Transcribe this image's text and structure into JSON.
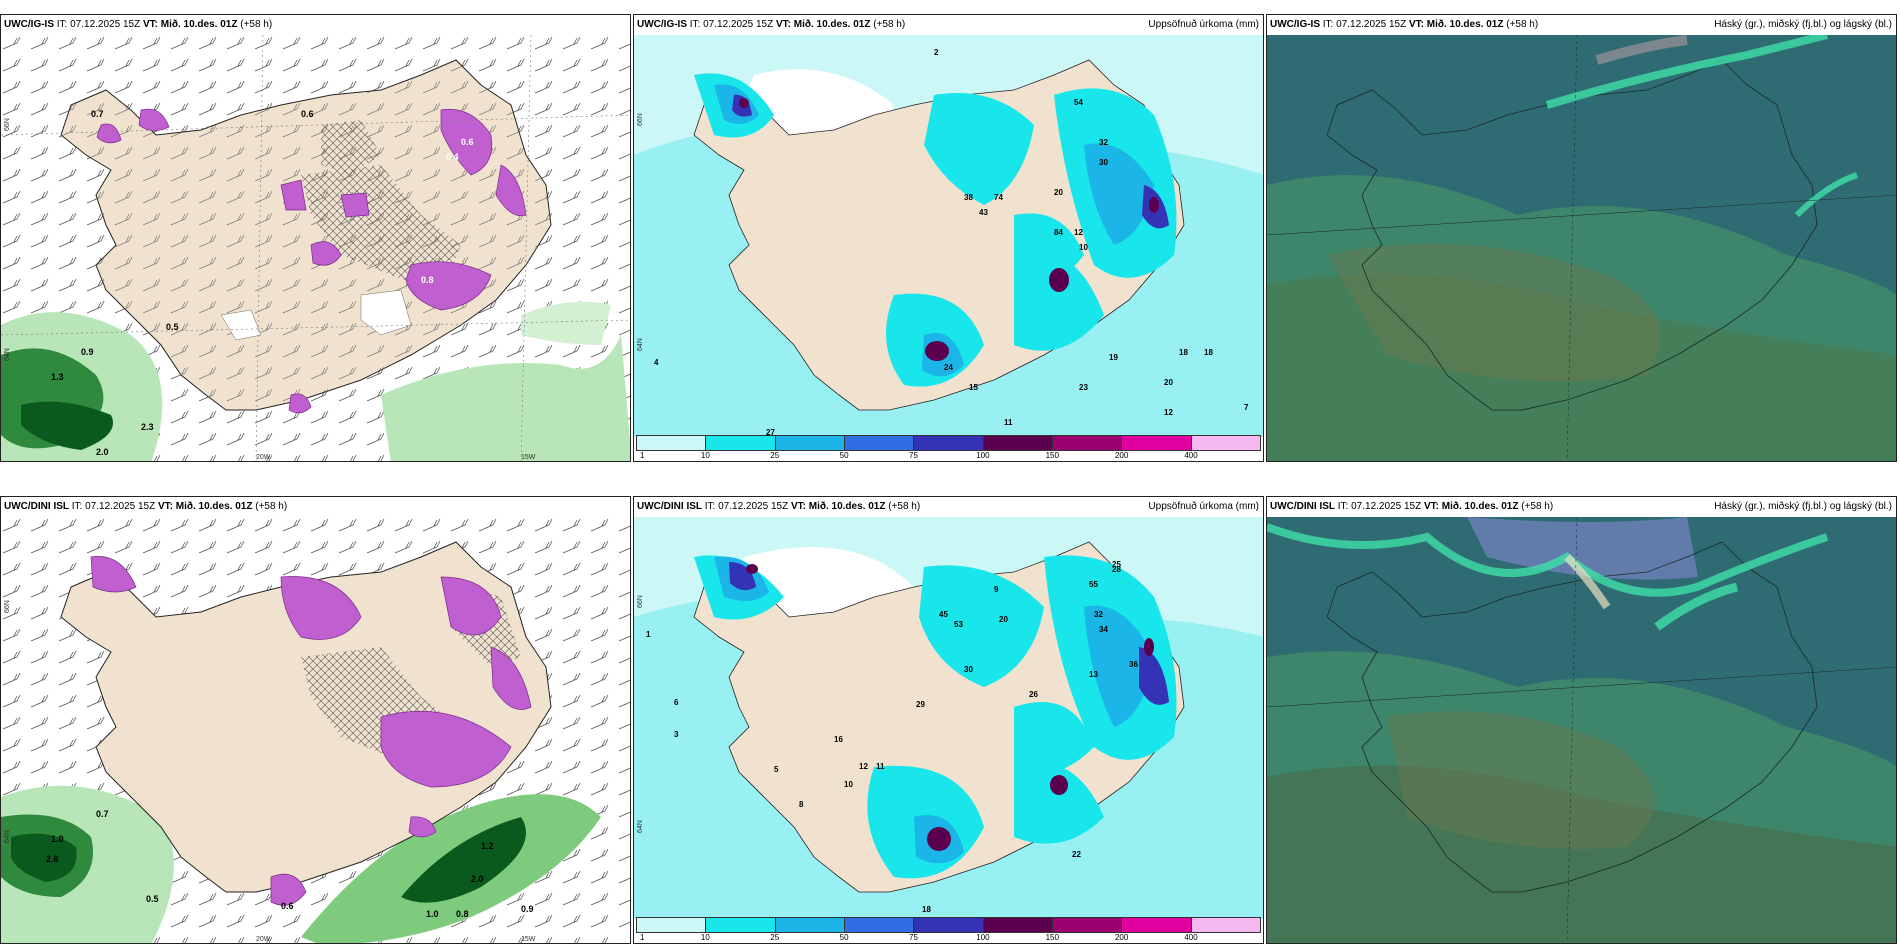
{
  "header": {
    "init": "IT: 07.12.2025 15Z",
    "valid": "VT: Mið. 10.des. 01Z",
    "lead": "(+58 h)"
  },
  "rows": [
    {
      "model": "UWC/IG-IS"
    },
    {
      "model": "UWC/DINI ISL"
    }
  ],
  "precip_title": "Uppsöfnuð úrkoma (mm)",
  "cloud_title": "Háský (gr.), miðský (fj.bl.) og lágský (bl.)",
  "axis_labels": {
    "lat_top": "66N",
    "lat_bottom": "64N",
    "lon_left": "20W",
    "lon_right": "15W"
  },
  "colorbar": {
    "colors": [
      "#ccf7f7",
      "#19e6ea",
      "#1bb5e7",
      "#2f6fe3",
      "#3432b5",
      "#5a004f",
      "#9a006f",
      "#e000a0",
      "#f5b8f0"
    ],
    "labels": [
      "1",
      "10",
      "25",
      "50",
      "75",
      "100",
      "150",
      "200",
      "400"
    ]
  },
  "colors": {
    "land": "#f1e2cf",
    "snow_magenta": "#c060d0",
    "green_light": "#b8e6b8",
    "green_dark": "#0a5a1e",
    "precip_cyan": "#99f0f2",
    "cloud_teal": "#2f6b72",
    "cloud_green": "#3f8a6a",
    "cloud_mint": "#3fe0a8"
  },
  "left_labels_top": [
    "0.7",
    "0.6",
    "0.9",
    "1.3",
    "2.3",
    "2.0",
    "0.5",
    "0.6",
    "0.4",
    "0.8"
  ],
  "left_labels_bottom": [
    "0.7",
    "1.0",
    "2.6",
    "0.5",
    "1.2",
    "2.0",
    "1.0",
    "0.8",
    "0.9",
    "0.6"
  ],
  "precip_labels_top": [
    "54",
    "32",
    "20",
    "30",
    "38",
    "43",
    "74",
    "84",
    "12",
    "10",
    "19",
    "18",
    "20",
    "24",
    "15",
    "11",
    "23",
    "18",
    "12",
    "7",
    "4",
    "2",
    "27"
  ],
  "precip_labels_bottom": [
    "55",
    "32",
    "34",
    "25",
    "30",
    "45",
    "53",
    "20",
    "26",
    "13",
    "36",
    "22",
    "29",
    "16",
    "12",
    "11",
    "10",
    "9",
    "8",
    "5",
    "3",
    "1",
    "6",
    "18",
    "28"
  ]
}
